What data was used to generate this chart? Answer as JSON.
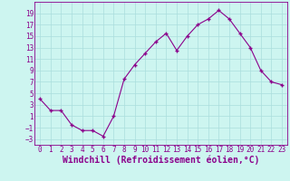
{
  "x": [
    0,
    1,
    2,
    3,
    4,
    5,
    6,
    7,
    8,
    9,
    10,
    11,
    12,
    13,
    14,
    15,
    16,
    17,
    18,
    19,
    20,
    21,
    22,
    23
  ],
  "y": [
    4,
    2,
    2,
    -0.5,
    -1.5,
    -1.5,
    -2.5,
    1,
    7.5,
    10,
    12,
    14,
    15.5,
    12.5,
    15,
    17,
    18,
    19.5,
    18,
    15.5,
    13,
    9,
    7,
    6.5
  ],
  "line_color": "#8B008B",
  "marker": "+",
  "marker_size": 3.5,
  "bg_color": "#cdf5f0",
  "grid_color": "#aadddd",
  "xlabel": "Windchill (Refroidissement éolien,°C)",
  "ylim": [
    -4,
    21
  ],
  "xlim": [
    -0.5,
    23.5
  ],
  "yticks": [
    -3,
    -1,
    1,
    3,
    5,
    7,
    9,
    11,
    13,
    15,
    17,
    19
  ],
  "xticks": [
    0,
    1,
    2,
    3,
    4,
    5,
    6,
    7,
    8,
    9,
    10,
    11,
    12,
    13,
    14,
    15,
    16,
    17,
    18,
    19,
    20,
    21,
    22,
    23
  ],
  "tick_fontsize": 5.5,
  "xlabel_fontsize": 7,
  "label_color": "#8B008B"
}
